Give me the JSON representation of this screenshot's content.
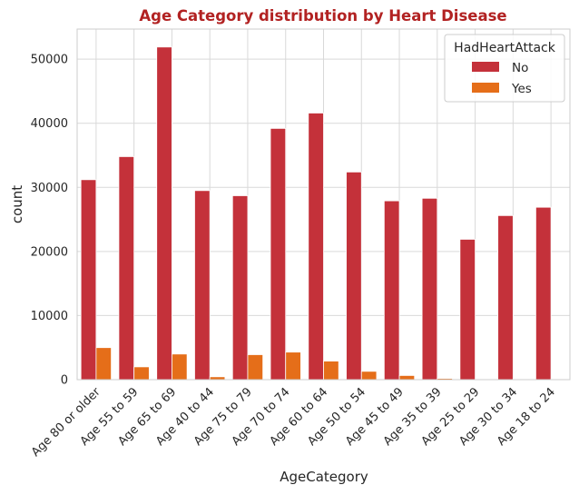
{
  "chart_data": {
    "type": "bar",
    "title": "Age Category distribution by Heart Disease",
    "xlabel": "AgeCategory",
    "ylabel": "count",
    "categories": [
      "Age 80 or older",
      "Age 55 to 59",
      "Age 65 to 69",
      "Age 40 to 44",
      "Age 75 to 79",
      "Age 70 to 74",
      "Age 60 to 64",
      "Age 50 to 54",
      "Age 45 to 49",
      "Age 35 to 39",
      "Age 25 to 29",
      "Age 30 to 34",
      "Age 18 to 24"
    ],
    "series": [
      {
        "name": "No",
        "values": [
          31200,
          34800,
          51900,
          29500,
          28700,
          39200,
          41600,
          32400,
          27900,
          28300,
          21900,
          25600,
          26900
        ]
      },
      {
        "name": "Yes",
        "values": [
          5000,
          2000,
          4000,
          450,
          3900,
          4300,
          2900,
          1300,
          650,
          200,
          60,
          120,
          80
        ]
      }
    ],
    "ylim": [
      0,
      54700
    ],
    "yticks": [
      "0",
      "10000",
      "20000",
      "30000",
      "40000",
      "50000"
    ],
    "legend": {
      "title": "HadHeartAttack",
      "placement": "top-right"
    },
    "grid": true,
    "colors": {
      "No": "#c4313a",
      "Yes": "#e56e19",
      "title": "#b22222",
      "grid": "#d9d9d9",
      "frame": "#cccccc"
    }
  }
}
